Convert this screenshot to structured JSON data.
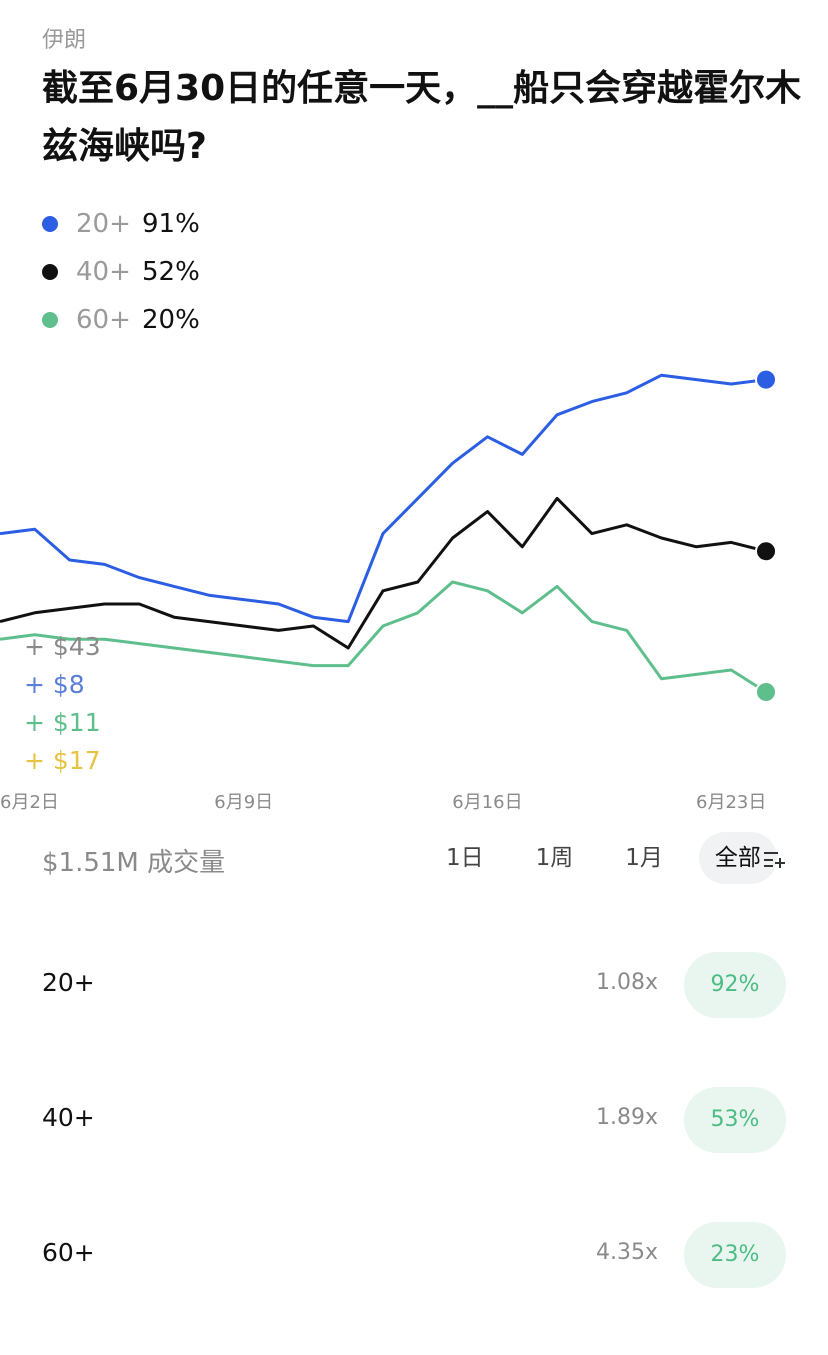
{
  "market": {
    "category": "伊朗",
    "title": "截至6月30日的任意一天，__船只会穿越霍尔木兹海峡吗?"
  },
  "legend": [
    {
      "name": "20+",
      "value": "91%",
      "color": "#2b5ee3"
    },
    {
      "name": "40+",
      "value": "52%",
      "color": "#111111"
    },
    {
      "name": "60+",
      "value": "20%",
      "color": "#5fbf8c"
    }
  ],
  "trades": [
    {
      "label": "+ $43",
      "color": "#8a8a8a"
    },
    {
      "label": "+ $8",
      "color": "#5b7fd8"
    },
    {
      "label": "+ $11",
      "color": "#5fbf8c"
    },
    {
      "label": "+ $17",
      "color": "#e6c340"
    }
  ],
  "chart_data": {
    "type": "line",
    "x": [
      "6月2日",
      "6月3日",
      "6月4日",
      "6月5日",
      "6月6日",
      "6月7日",
      "6月8日",
      "6月9日",
      "6月10日",
      "6月11日",
      "6月12日",
      "6月13日",
      "6月14日",
      "6月15日",
      "6月16日",
      "6月17日",
      "6月18日",
      "6月19日",
      "6月20日",
      "6月21日",
      "6月22日",
      "6月23日",
      "6月24日"
    ],
    "x_ticks": [
      "6月2日",
      "6月9日",
      "6月16日",
      "6月23日"
    ],
    "ylim": [
      0,
      100
    ],
    "series": [
      {
        "name": "20+",
        "color": "#2b5ee3",
        "values": [
          56,
          57,
          50,
          49,
          46,
          44,
          42,
          41,
          40,
          37,
          36,
          56,
          64,
          72,
          78,
          74,
          83,
          86,
          88,
          92,
          91,
          90,
          91
        ]
      },
      {
        "name": "40+",
        "color": "#111111",
        "values": [
          36,
          38,
          39,
          40,
          40,
          37,
          36,
          35,
          34,
          35,
          30,
          43,
          45,
          55,
          61,
          53,
          64,
          56,
          58,
          55,
          53,
          54,
          52
        ]
      },
      {
        "name": "60+",
        "color": "#5fbf8c",
        "values": [
          32,
          33,
          32,
          32,
          31,
          30,
          29,
          28,
          27,
          26,
          26,
          35,
          38,
          45,
          43,
          38,
          44,
          36,
          34,
          23,
          24,
          25,
          20
        ]
      }
    ]
  },
  "volume": {
    "label": "$1.51M 成交量"
  },
  "tabs": [
    {
      "label": "1日",
      "active": false
    },
    {
      "label": "1周",
      "active": false
    },
    {
      "label": "1月",
      "active": false
    },
    {
      "label": "全部",
      "active": true
    }
  ],
  "filter_icon": "sliders-icon",
  "outcomes": [
    {
      "name": "20+",
      "multiplier": "1.08x",
      "price": "92%"
    },
    {
      "name": "40+",
      "multiplier": "1.89x",
      "price": "53%"
    },
    {
      "name": "60+",
      "multiplier": "4.35x",
      "price": "23%"
    }
  ]
}
